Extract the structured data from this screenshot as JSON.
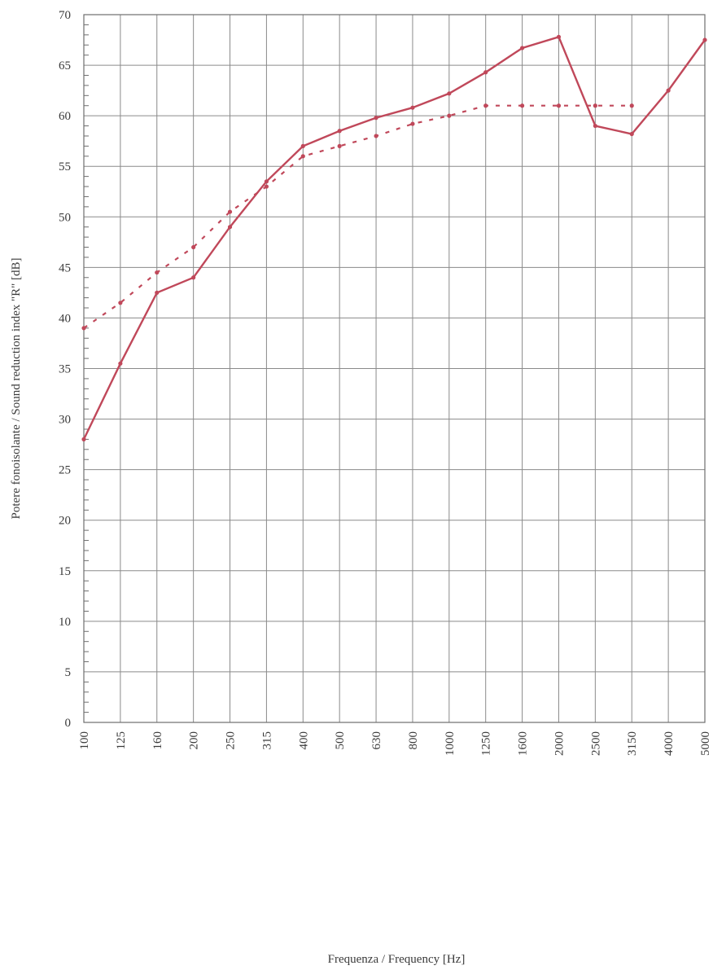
{
  "chart_data": {
    "type": "line",
    "xlabel": "Frequenza / Frequency [Hz]",
    "ylabel": "Potere fonoisolante / Sound reduction index \"R\" [dB]",
    "x_scale": "log-third-octave",
    "categories": [
      "100",
      "125",
      "160",
      "200",
      "250",
      "315",
      "400",
      "500",
      "630",
      "800",
      "1000",
      "1250",
      "1600",
      "2000",
      "2500",
      "3150",
      "4000",
      "5000"
    ],
    "ylim": [
      0,
      70
    ],
    "yticks": [
      0,
      5,
      10,
      15,
      20,
      25,
      30,
      35,
      40,
      45,
      50,
      55,
      60,
      65,
      70
    ],
    "grid": true,
    "colors": {
      "series": "#c0485a",
      "grid": "#8a8a8a",
      "axis_text": "#3a3a3a"
    },
    "series": [
      {
        "style": "solid",
        "values": [
          28,
          35.5,
          42.5,
          44,
          49,
          53.5,
          57,
          58.5,
          59.8,
          60.8,
          62.2,
          64.3,
          66.7,
          67.8,
          59,
          58.2,
          62.5,
          67.5
        ]
      },
      {
        "style": "dashed",
        "values": [
          39,
          41.5,
          44.5,
          47,
          50.5,
          53,
          56,
          57,
          58,
          59.2,
          60,
          61,
          61,
          61,
          61,
          61,
          null,
          null
        ]
      }
    ]
  }
}
